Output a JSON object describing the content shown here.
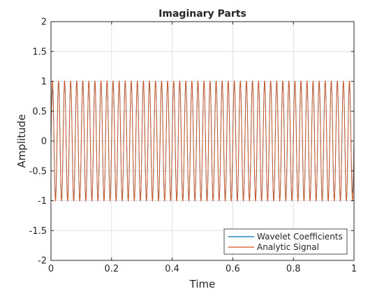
{
  "chart_data": {
    "type": "line",
    "title": "Imaginary Parts",
    "xlabel": "Time",
    "ylabel": "Amplitude",
    "xlim": [
      0,
      1
    ],
    "ylim": [
      -2,
      2
    ],
    "xticks": [
      0,
      0.2,
      0.4,
      0.6,
      0.8,
      1
    ],
    "xtick_labels": [
      "0",
      "0.2",
      "0.4",
      "0.6",
      "0.8",
      "1"
    ],
    "yticks": [
      -2,
      -1.5,
      -1,
      -0.5,
      0,
      0.5,
      1,
      1.5,
      2
    ],
    "ytick_labels": [
      "-2",
      "-1.5",
      "-1",
      "-0.5",
      "0",
      "0.5",
      "1",
      "1.5",
      "2"
    ],
    "grid": true,
    "legend_position": "bottom-right",
    "signal": {
      "function": "sin",
      "frequency_hz": 50,
      "amplitude": 1,
      "x_start": 0,
      "x_end": 1
    },
    "series": [
      {
        "name": "Wavelet Coefficients",
        "color": "#0072BD"
      },
      {
        "name": "Analytic Signal",
        "color": "#D95319"
      }
    ]
  }
}
